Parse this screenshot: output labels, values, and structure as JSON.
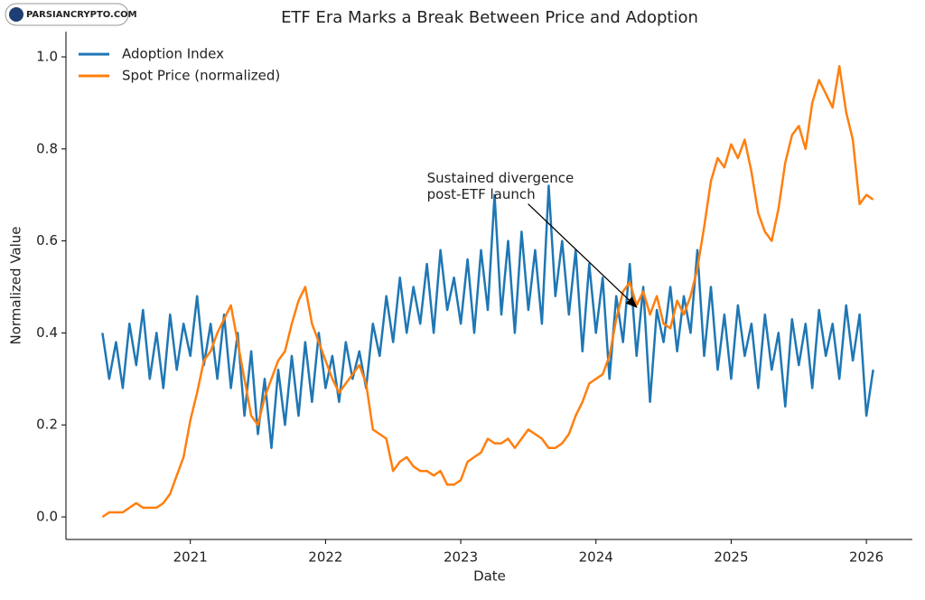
{
  "watermark": "PARSIANCRYPTO.COM",
  "chart_data": {
    "type": "line",
    "title": "ETF Era Marks a Break Between Price and Adoption",
    "x_label": "Date",
    "y_label": "Normalized Value",
    "xlim": [
      2020.08,
      2026.34
    ],
    "xticks": [
      2021,
      2022,
      2023,
      2024,
      2025,
      2026
    ],
    "ylim": [
      -0.049,
      1.055
    ],
    "yticks": [
      {
        "value": 0,
        "label": "0.0"
      },
      0.2,
      0.4,
      0.6,
      0.8,
      {
        "value": 1,
        "label": "1.0"
      }
    ],
    "grid": false,
    "legend": "upper left",
    "x": [
      2020.35,
      2020.4,
      2020.45,
      2020.5,
      2020.55,
      2020.6,
      2020.65,
      2020.7,
      2020.75,
      2020.8,
      2020.85,
      2020.9,
      2020.95,
      2021.0,
      2021.05,
      2021.1,
      2021.15,
      2021.2,
      2021.25,
      2021.3,
      2021.35,
      2021.4,
      2021.45,
      2021.5,
      2021.55,
      2021.6,
      2021.65,
      2021.7,
      2021.75,
      2021.8,
      2021.85,
      2021.9,
      2021.95,
      2022.0,
      2022.05,
      2022.1,
      2022.15,
      2022.2,
      2022.25,
      2022.3,
      2022.35,
      2022.4,
      2022.45,
      2022.5,
      2022.55,
      2022.6,
      2022.65,
      2022.7,
      2022.75,
      2022.8,
      2022.85,
      2022.9,
      2022.95,
      2023.0,
      2023.05,
      2023.1,
      2023.15,
      2023.2,
      2023.25,
      2023.3,
      2023.35,
      2023.4,
      2023.45,
      2023.5,
      2023.55,
      2023.6,
      2023.65,
      2023.7,
      2023.75,
      2023.8,
      2023.85,
      2023.9,
      2023.95,
      2024.0,
      2024.05,
      2024.1,
      2024.15,
      2024.2,
      2024.25,
      2024.3,
      2024.35,
      2024.4,
      2024.45,
      2024.5,
      2024.55,
      2024.6,
      2024.65,
      2024.7,
      2024.75,
      2024.8,
      2024.85,
      2024.9,
      2024.95,
      2025.0,
      2025.05,
      2025.1,
      2025.15,
      2025.2,
      2025.25,
      2025.3,
      2025.35,
      2025.4,
      2025.45,
      2025.5,
      2025.55,
      2025.6,
      2025.65,
      2025.7,
      2025.75,
      2025.8,
      2025.85,
      2025.9,
      2025.95,
      2026.0,
      2026.05
    ],
    "series": [
      {
        "name": "Adoption Index",
        "color": "#1f77b4",
        "values": [
          0.4,
          0.3,
          0.38,
          0.28,
          0.42,
          0.33,
          0.45,
          0.3,
          0.4,
          0.28,
          0.44,
          0.32,
          0.42,
          0.35,
          0.48,
          0.33,
          0.42,
          0.3,
          0.44,
          0.28,
          0.4,
          0.22,
          0.36,
          0.18,
          0.3,
          0.15,
          0.32,
          0.2,
          0.35,
          0.22,
          0.38,
          0.25,
          0.4,
          0.28,
          0.35,
          0.25,
          0.38,
          0.3,
          0.36,
          0.28,
          0.42,
          0.35,
          0.48,
          0.38,
          0.52,
          0.4,
          0.5,
          0.42,
          0.55,
          0.4,
          0.58,
          0.45,
          0.52,
          0.42,
          0.56,
          0.4,
          0.58,
          0.45,
          0.7,
          0.44,
          0.6,
          0.4,
          0.62,
          0.45,
          0.58,
          0.42,
          0.72,
          0.48,
          0.6,
          0.44,
          0.58,
          0.36,
          0.55,
          0.4,
          0.52,
          0.3,
          0.48,
          0.38,
          0.55,
          0.35,
          0.5,
          0.25,
          0.45,
          0.38,
          0.5,
          0.36,
          0.48,
          0.4,
          0.58,
          0.35,
          0.5,
          0.32,
          0.44,
          0.3,
          0.46,
          0.35,
          0.42,
          0.28,
          0.44,
          0.32,
          0.4,
          0.24,
          0.43,
          0.33,
          0.42,
          0.28,
          0.45,
          0.35,
          0.42,
          0.3,
          0.46,
          0.34,
          0.44,
          0.22,
          0.32
        ]
      },
      {
        "name": "Spot Price (normalized)",
        "color": "#ff7f0e",
        "values": [
          0.0,
          0.01,
          0.01,
          0.01,
          0.02,
          0.03,
          0.02,
          0.02,
          0.02,
          0.03,
          0.05,
          0.09,
          0.13,
          0.21,
          0.27,
          0.34,
          0.36,
          0.4,
          0.43,
          0.46,
          0.38,
          0.3,
          0.22,
          0.2,
          0.26,
          0.3,
          0.34,
          0.36,
          0.42,
          0.47,
          0.5,
          0.42,
          0.38,
          0.34,
          0.3,
          0.27,
          0.29,
          0.31,
          0.33,
          0.29,
          0.19,
          0.18,
          0.17,
          0.1,
          0.12,
          0.13,
          0.11,
          0.1,
          0.1,
          0.09,
          0.1,
          0.07,
          0.07,
          0.08,
          0.12,
          0.13,
          0.14,
          0.17,
          0.16,
          0.16,
          0.17,
          0.15,
          0.17,
          0.19,
          0.18,
          0.17,
          0.15,
          0.15,
          0.16,
          0.18,
          0.22,
          0.25,
          0.29,
          0.3,
          0.31,
          0.35,
          0.43,
          0.49,
          0.51,
          0.46,
          0.49,
          0.44,
          0.48,
          0.42,
          0.41,
          0.47,
          0.44,
          0.48,
          0.54,
          0.63,
          0.73,
          0.78,
          0.76,
          0.81,
          0.78,
          0.82,
          0.75,
          0.66,
          0.62,
          0.6,
          0.67,
          0.77,
          0.83,
          0.85,
          0.8,
          0.9,
          0.95,
          0.92,
          0.89,
          0.98,
          0.88,
          0.82,
          0.68,
          0.7,
          0.69
        ]
      }
    ],
    "annotation": {
      "lines": [
        "Sustained divergence",
        "post-ETF launch"
      ],
      "xy": [
        2024.3,
        0.456
      ],
      "xytext": [
        2022.75,
        0.7
      ]
    }
  }
}
